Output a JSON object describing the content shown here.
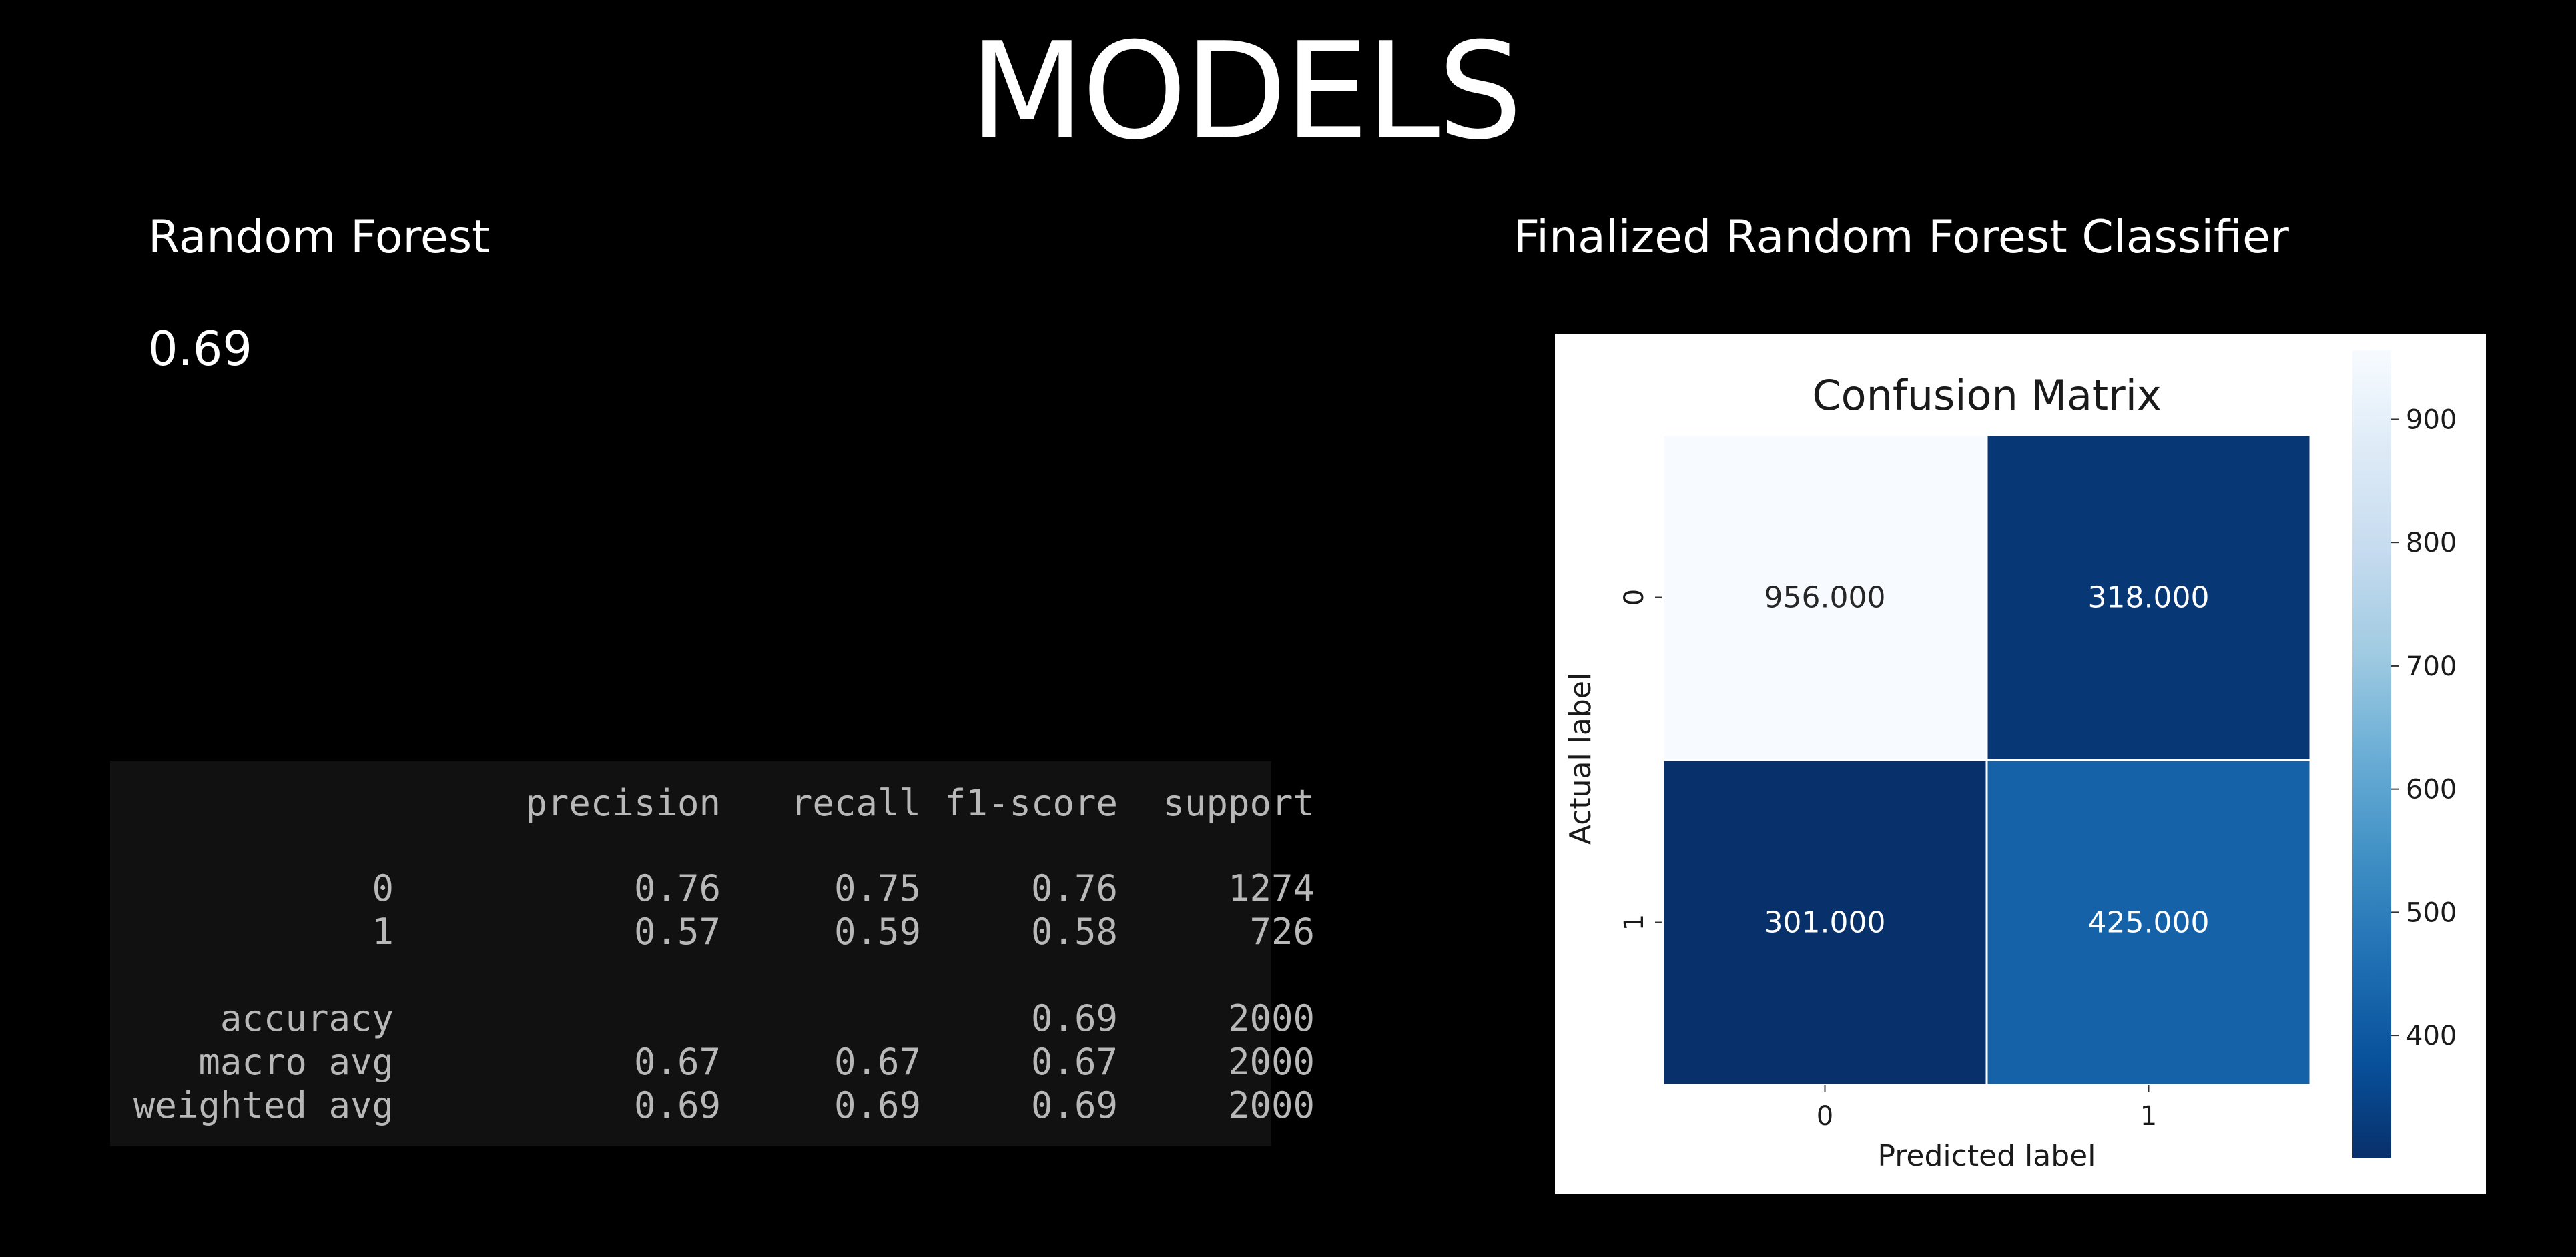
{
  "slide": {
    "title": "MODELS",
    "left_heading": "Random Forest",
    "score": "0.69",
    "right_heading": "Finalized Random Forest Classifier"
  },
  "report": {
    "headers": [
      "precision",
      "recall",
      "f1-score",
      "support"
    ],
    "rows": [
      {
        "label": "0",
        "values": [
          "0.76",
          "0.75",
          "0.76",
          "1274"
        ]
      },
      {
        "label": "1",
        "values": [
          "0.57",
          "0.59",
          "0.58",
          "726"
        ]
      },
      {
        "label": "accuracy",
        "values": [
          "",
          "",
          "0.69",
          "2000"
        ]
      },
      {
        "label": "macro avg",
        "values": [
          "0.67",
          "0.67",
          "0.67",
          "2000"
        ]
      },
      {
        "label": "weighted avg",
        "values": [
          "0.69",
          "0.69",
          "0.69",
          "2000"
        ]
      }
    ]
  },
  "chart_data": {
    "type": "heatmap",
    "title": "Confusion Matrix",
    "xlabel": "Predicted label",
    "ylabel": "Actual label",
    "x_categories": [
      "0",
      "1"
    ],
    "y_categories": [
      "0",
      "1"
    ],
    "values": [
      [
        956,
        318
      ],
      [
        301,
        425
      ]
    ],
    "annotations": [
      [
        "956.000",
        "318.000"
      ],
      [
        "301.000",
        "425.000"
      ]
    ],
    "colormap": "Blues",
    "color_low": "#08306b",
    "color_high": "#f7fbff",
    "colorbar_range": [
      301,
      956
    ],
    "colorbar_ticks": [
      400,
      500,
      600,
      700,
      800,
      900
    ],
    "grid_line_color": "#ffffff"
  }
}
